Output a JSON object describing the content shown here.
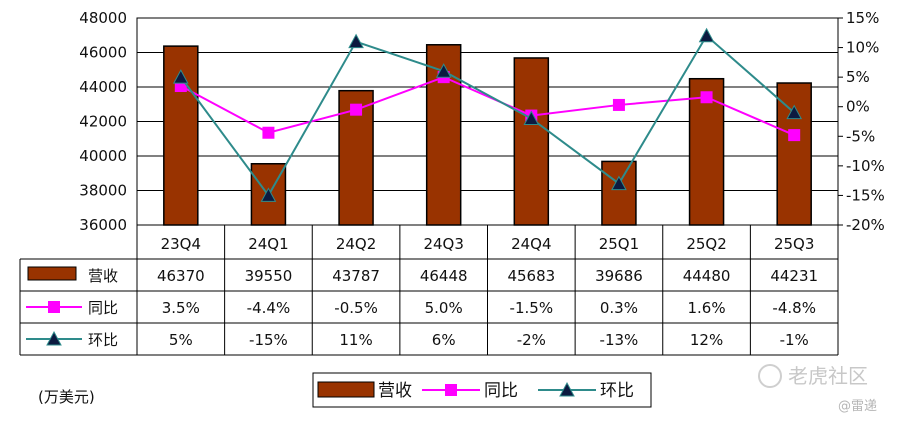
{
  "chart_data": {
    "type": "bar",
    "categories": [
      "23Q4",
      "24Q1",
      "24Q2",
      "24Q3",
      "24Q4",
      "25Q1",
      "25Q2",
      "25Q3"
    ],
    "series": [
      {
        "name": "营收",
        "type": "bar",
        "axis": "left",
        "color": "#993300",
        "values": [
          46370,
          39550,
          43787,
          46448,
          45683,
          39686,
          44480,
          44231
        ],
        "labels": [
          "46370",
          "39550",
          "43787",
          "46448",
          "45683",
          "39686",
          "44480",
          "44231"
        ]
      },
      {
        "name": "同比",
        "type": "line",
        "axis": "right",
        "color": "#ff00ff",
        "marker": "square",
        "values": [
          3.5,
          -4.4,
          -0.5,
          5.0,
          -1.5,
          0.3,
          1.6,
          -4.8
        ],
        "labels": [
          "3.5%",
          "-4.4%",
          "-0.5%",
          "5.0%",
          "-1.5%",
          "0.3%",
          "1.6%",
          "-4.8%"
        ]
      },
      {
        "name": "环比",
        "type": "line",
        "axis": "right",
        "color": "#2e8b8b",
        "marker": "triangle",
        "values": [
          5,
          -15,
          11,
          6,
          -2,
          -13,
          12,
          -1
        ],
        "labels": [
          "5%",
          "-15%",
          "11%",
          "6%",
          "-2%",
          "-13%",
          "12%",
          "-1%"
        ]
      }
    ],
    "left_axis": {
      "range": [
        36000,
        48000
      ],
      "ticks": [
        "48000",
        "46000",
        "44000",
        "42000",
        "40000",
        "38000",
        "36000"
      ]
    },
    "right_axis": {
      "range": [
        -20,
        15
      ],
      "ticks": [
        "15%",
        "10%",
        "5%",
        "0%",
        "-5%",
        "-10%",
        "-15%",
        "-20%"
      ]
    },
    "unit_label": "(万美元)",
    "grid": true,
    "data_table": true,
    "legend_position": "bottom"
  },
  "watermark": {
    "text": "老虎社区",
    "sub": "@雷递"
  }
}
